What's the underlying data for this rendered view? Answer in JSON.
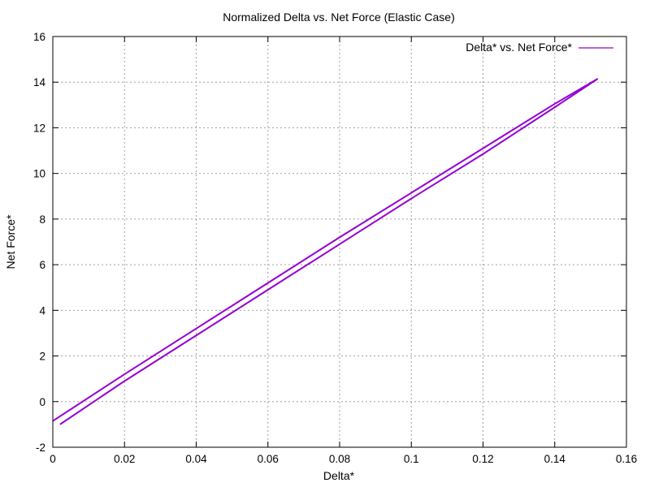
{
  "chart_data": {
    "type": "line",
    "title": "Normalized Delta vs. Net Force (Elastic Case)",
    "xlabel": "Delta*",
    "ylabel": "Net Force*",
    "xlim": [
      0,
      0.16
    ],
    "ylim": [
      -2,
      16
    ],
    "xticks": [
      0,
      0.02,
      0.04,
      0.06,
      0.08,
      0.1,
      0.12,
      0.14,
      0.16
    ],
    "xtick_labels": [
      "0",
      "0.02",
      "0.04",
      "0.06",
      "0.08",
      "0.1",
      "0.12",
      "0.14",
      "0.16"
    ],
    "yticks": [
      -2,
      0,
      2,
      4,
      6,
      8,
      10,
      12,
      14,
      16
    ],
    "ytick_labels": [
      "-2",
      "0",
      "2",
      "4",
      "6",
      "8",
      "10",
      "12",
      "14",
      "16"
    ],
    "grid": true,
    "legend_position": "top-right",
    "series": [
      {
        "name": "Delta* vs. Net Force*",
        "color": "#9400d3",
        "x": [
          0.0,
          0.02,
          0.04,
          0.06,
          0.08,
          0.1,
          0.12,
          0.14,
          0.152
        ],
        "y": [
          -0.85,
          1.2,
          3.2,
          5.2,
          7.2,
          9.15,
          11.1,
          13.05,
          14.15
        ]
      },
      {
        "color": "#9400d3",
        "x": [
          0.152,
          0.14,
          0.12,
          0.1,
          0.08,
          0.06,
          0.04,
          0.02,
          0.002
        ],
        "y": [
          14.15,
          12.9,
          10.85,
          8.9,
          6.9,
          4.9,
          2.9,
          0.9,
          -1.0
        ]
      }
    ]
  }
}
